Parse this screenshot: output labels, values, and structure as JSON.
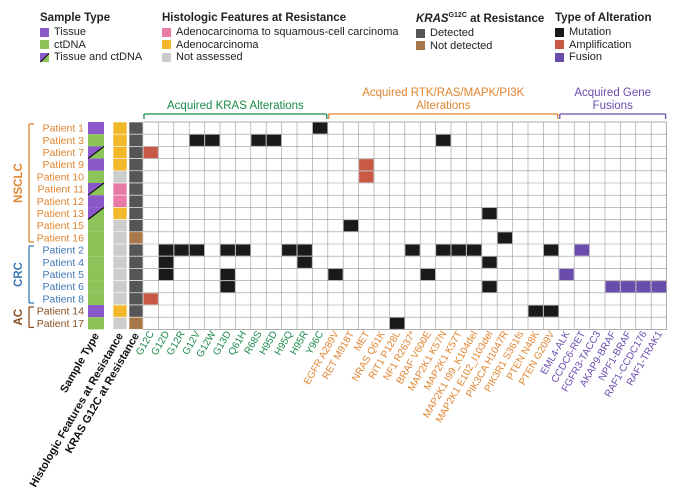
{
  "legend": {
    "sample_type": {
      "title": "Sample Type",
      "items": [
        {
          "label": "Tissue",
          "color": "#8a58c9"
        },
        {
          "label": "ctDNA",
          "color": "#8cc45a"
        },
        {
          "label": "Tissue and ctDNA",
          "color": "split"
        }
      ]
    },
    "histologic": {
      "title": "Histologic Features at Resistance",
      "items": [
        {
          "label": "Adenocarcinoma to squamous-cell carcinoma",
          "color": "#e87aa8"
        },
        {
          "label": "Adenocarcinoma",
          "color": "#f2b82a"
        },
        {
          "label": "Not assessed",
          "color": "#cccccc"
        }
      ]
    },
    "kras": {
      "title_main": "KRAS",
      "title_sup": "G12C",
      "title_rest": " at Resistance",
      "items": [
        {
          "label": "Detected",
          "color": "#555555"
        },
        {
          "label": "Not detected",
          "color": "#a8774a"
        }
      ]
    },
    "alteration": {
      "title": "Type of Alteration",
      "items": [
        {
          "label": "Mutation",
          "color": "#1a1a1a"
        },
        {
          "label": "Amplification",
          "color": "#c85a45"
        },
        {
          "label": "Fusion",
          "color": "#6a4cad"
        }
      ]
    }
  },
  "colors": {
    "nsclc": "#e0852f",
    "crc": "#3a78b5",
    "ac": "#8a4f22",
    "kras_group": "#1a8a4a",
    "rtk_group": "#e0852f",
    "fusion_group": "#6a4cad",
    "grid": "#9a9a9a"
  },
  "chart_data": {
    "type": "heatmap",
    "tumor_types": [
      {
        "name": "NSCLC",
        "patients": [
          "Patient 1",
          "Patient 3",
          "Patient 7",
          "Patient 9",
          "Patient 10",
          "Patient 11",
          "Patient 12",
          "Patient 13",
          "Patient 15",
          "Patient 16"
        ]
      },
      {
        "name": "CRC",
        "patients": [
          "Patient 2",
          "Patient 4",
          "Patient 5",
          "Patient 6",
          "Patient 8"
        ]
      },
      {
        "name": "AC",
        "patients": [
          "Patient 14",
          "Patient 17"
        ]
      }
    ],
    "row_annotations": [
      {
        "patient": "Patient 1",
        "sample_type": "Tissue",
        "histology": "Adenocarcinoma",
        "kras": "Detected"
      },
      {
        "patient": "Patient 3",
        "sample_type": "ctDNA",
        "histology": "Adenocarcinoma",
        "kras": "Detected"
      },
      {
        "patient": "Patient 7",
        "sample_type": "Tissue and ctDNA",
        "histology": "Adenocarcinoma",
        "kras": "Detected"
      },
      {
        "patient": "Patient 9",
        "sample_type": "Tissue",
        "histology": "Adenocarcinoma",
        "kras": "Detected"
      },
      {
        "patient": "Patient 10",
        "sample_type": "ctDNA",
        "histology": "Not assessed",
        "kras": "Detected"
      },
      {
        "patient": "Patient 11",
        "sample_type": "Tissue and ctDNA",
        "histology": "Adenocarcinoma to squamous-cell carcinoma",
        "kras": "Detected"
      },
      {
        "patient": "Patient 12",
        "sample_type": "Tissue",
        "histology": "Adenocarcinoma to squamous-cell carcinoma",
        "kras": "Detected"
      },
      {
        "patient": "Patient 13",
        "sample_type": "Tissue and ctDNA",
        "histology": "Adenocarcinoma",
        "kras": "Detected"
      },
      {
        "patient": "Patient 15",
        "sample_type": "ctDNA",
        "histology": "Not assessed",
        "kras": "Detected"
      },
      {
        "patient": "Patient 16",
        "sample_type": "ctDNA",
        "histology": "Not assessed",
        "kras": "Not detected"
      },
      {
        "patient": "Patient 2",
        "sample_type": "ctDNA",
        "histology": "Not assessed",
        "kras": "Detected"
      },
      {
        "patient": "Patient 4",
        "sample_type": "ctDNA",
        "histology": "Not assessed",
        "kras": "Detected"
      },
      {
        "patient": "Patient 5",
        "sample_type": "ctDNA",
        "histology": "Not assessed",
        "kras": "Detected"
      },
      {
        "patient": "Patient 6",
        "sample_type": "ctDNA",
        "histology": "Not assessed",
        "kras": "Detected"
      },
      {
        "patient": "Patient 8",
        "sample_type": "ctDNA",
        "histology": "Not assessed",
        "kras": "Detected"
      },
      {
        "patient": "Patient 14",
        "sample_type": "Tissue",
        "histology": "Adenocarcinoma",
        "kras": "Detected"
      },
      {
        "patient": "Patient 17",
        "sample_type": "ctDNA",
        "histology": "Not assessed",
        "kras": "Not detected"
      }
    ],
    "annotation_column_labels": [
      "Sample Type",
      "Histologic Features at Resistance",
      "KRAS G12C at Resistance"
    ],
    "column_groups": [
      {
        "title": "Acquired KRAS Alterations",
        "columns": [
          "G12C",
          "G12D",
          "G12R",
          "G12V",
          "G12W",
          "G13D",
          "Q61H",
          "R68S",
          "H95D",
          "H95Q",
          "H95R",
          "Y96C"
        ]
      },
      {
        "title": "Acquired RTK/RAS/MAPK/PI3K Alterations",
        "columns": [
          "EGFR A289V",
          "RET M918T",
          "MET",
          "NRAS Q61K",
          "RIT1 P128L",
          "NF1 R2637*",
          "BRAF V600E",
          "MAP2K1 K57N",
          "MAP2K1 K57T",
          "MAP2K1 I99_K104del",
          "MAP2K1 E102_I103del",
          "PIK3CA H1047R",
          "PIK3R1 S361fs",
          "PTEN N48K",
          "PTEN G209V"
        ]
      },
      {
        "title": "Acquired Gene Fusions",
        "columns": [
          "EML4-ALK",
          "CCDC6-RET",
          "FGFR3-TACC3",
          "AKAP9-BRAF",
          "NPF1-BRAF",
          "RAF1-CCDC176",
          "RAF1-TRAK1"
        ]
      }
    ],
    "cells": [
      {
        "patient": "Patient 1",
        "gene": "Y96C",
        "type": "Mutation"
      },
      {
        "patient": "Patient 3",
        "gene": "G12V",
        "type": "Mutation"
      },
      {
        "patient": "Patient 3",
        "gene": "G12W",
        "type": "Mutation"
      },
      {
        "patient": "Patient 3",
        "gene": "R68S",
        "type": "Mutation"
      },
      {
        "patient": "Patient 3",
        "gene": "H95D",
        "type": "Mutation"
      },
      {
        "patient": "Patient 3",
        "gene": "MAP2K1 K57N",
        "type": "Mutation"
      },
      {
        "patient": "Patient 7",
        "gene": "G12C",
        "type": "Amplification"
      },
      {
        "patient": "Patient 9",
        "gene": "MET",
        "type": "Amplification"
      },
      {
        "patient": "Patient 10",
        "gene": "MET",
        "type": "Amplification"
      },
      {
        "patient": "Patient 13",
        "gene": "MAP2K1 E102_I103del",
        "type": "Mutation"
      },
      {
        "patient": "Patient 15",
        "gene": "RET M918T",
        "type": "Mutation"
      },
      {
        "patient": "Patient 16",
        "gene": "PIK3CA H1047R",
        "type": "Mutation"
      },
      {
        "patient": "Patient 2",
        "gene": "G12D",
        "type": "Mutation"
      },
      {
        "patient": "Patient 2",
        "gene": "G12R",
        "type": "Mutation"
      },
      {
        "patient": "Patient 2",
        "gene": "G12V",
        "type": "Mutation"
      },
      {
        "patient": "Patient 2",
        "gene": "G13D",
        "type": "Mutation"
      },
      {
        "patient": "Patient 2",
        "gene": "Q61H",
        "type": "Mutation"
      },
      {
        "patient": "Patient 2",
        "gene": "H95Q",
        "type": "Mutation"
      },
      {
        "patient": "Patient 2",
        "gene": "H95R",
        "type": "Mutation"
      },
      {
        "patient": "Patient 2",
        "gene": "NF1 R2637*",
        "type": "Mutation"
      },
      {
        "patient": "Patient 2",
        "gene": "MAP2K1 K57N",
        "type": "Mutation"
      },
      {
        "patient": "Patient 2",
        "gene": "MAP2K1 K57T",
        "type": "Mutation"
      },
      {
        "patient": "Patient 2",
        "gene": "MAP2K1 I99_K104del",
        "type": "Mutation"
      },
      {
        "patient": "Patient 2",
        "gene": "PTEN G209V",
        "type": "Mutation"
      },
      {
        "patient": "Patient 2",
        "gene": "CCDC6-RET",
        "type": "Fusion"
      },
      {
        "patient": "Patient 4",
        "gene": "G12D",
        "type": "Mutation"
      },
      {
        "patient": "Patient 4",
        "gene": "H95R",
        "type": "Mutation"
      },
      {
        "patient": "Patient 4",
        "gene": "MAP2K1 E102_I103del",
        "type": "Mutation"
      },
      {
        "patient": "Patient 5",
        "gene": "G12D",
        "type": "Mutation"
      },
      {
        "patient": "Patient 5",
        "gene": "G13D",
        "type": "Mutation"
      },
      {
        "patient": "Patient 5",
        "gene": "EGFR A289V",
        "type": "Mutation"
      },
      {
        "patient": "Patient 5",
        "gene": "BRAF V600E",
        "type": "Mutation"
      },
      {
        "patient": "Patient 5",
        "gene": "EML4-ALK",
        "type": "Fusion"
      },
      {
        "patient": "Patient 6",
        "gene": "G13D",
        "type": "Mutation"
      },
      {
        "patient": "Patient 6",
        "gene": "MAP2K1 E102_I103del",
        "type": "Mutation"
      },
      {
        "patient": "Patient 6",
        "gene": "AKAP9-BRAF",
        "type": "Fusion"
      },
      {
        "patient": "Patient 6",
        "gene": "NPF1-BRAF",
        "type": "Fusion"
      },
      {
        "patient": "Patient 6",
        "gene": "RAF1-CCDC176",
        "type": "Fusion"
      },
      {
        "patient": "Patient 6",
        "gene": "RAF1-TRAK1",
        "type": "Fusion"
      },
      {
        "patient": "Patient 8",
        "gene": "G12C",
        "type": "Amplification"
      },
      {
        "patient": "Patient 14",
        "gene": "PTEN N48K",
        "type": "Mutation"
      },
      {
        "patient": "Patient 14",
        "gene": "PTEN G209V",
        "type": "Mutation"
      },
      {
        "patient": "Patient 17",
        "gene": "RIT1 P128L",
        "type": "Mutation"
      }
    ]
  }
}
